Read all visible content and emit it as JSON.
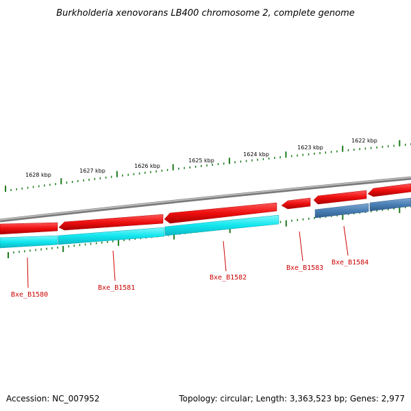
{
  "title": "Burkholderia xenovorans LB400 chromosome 2, complete genome",
  "footer": {
    "accession": "Accession: NC_007952",
    "summary": "Topology: circular; Length: 3,363,523 bp; Genes: 2,977"
  },
  "scale_labels": [
    "1628 kbp",
    "1627 kbp",
    "1626 kbp",
    "1625 kbp",
    "1624 kbp",
    "1623 kbp",
    "1622 kbp"
  ],
  "genes": [
    {
      "name": "Bxe_B1580",
      "strand": "reverse"
    },
    {
      "name": "Bxe_B1581",
      "strand": "reverse"
    },
    {
      "name": "Bxe_B1582",
      "strand": "reverse"
    },
    {
      "name": "Bxe_B1583",
      "strand": "reverse"
    },
    {
      "name": "Bxe_B1584",
      "strand": "reverse"
    }
  ],
  "colors": {
    "forward_cds": "#ee1111",
    "reverse_track_cyan": "#18e8f0",
    "reverse_track_blue": "#4a7fb5",
    "backbone": "#808080",
    "tick": "#1a7a1a",
    "label": "#cc0000"
  }
}
